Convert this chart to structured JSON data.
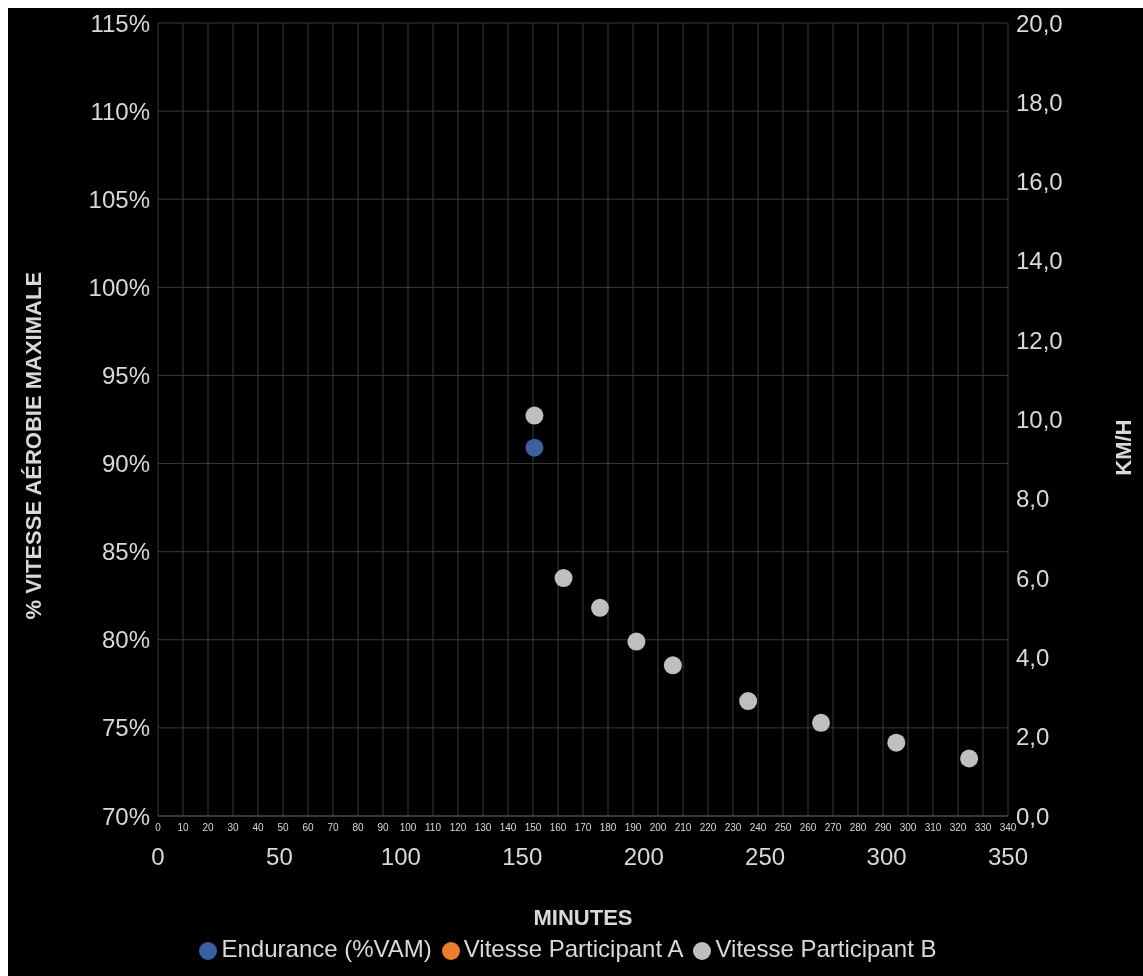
{
  "chart_data": {
    "type": "scatter",
    "xlabel": "MINUTES",
    "ylabel": "% VITESSE AÉROBIE MAXIMALE",
    "y2label": "KM/H",
    "xlim": [
      0,
      350
    ],
    "xticks": [
      0,
      50,
      100,
      150,
      200,
      250,
      300,
      350
    ],
    "x2lim": [
      0,
      340
    ],
    "x2ticks": [
      0,
      10,
      20,
      30,
      40,
      50,
      60,
      70,
      80,
      90,
      100,
      110,
      120,
      130,
      140,
      150,
      160,
      170,
      180,
      190,
      200,
      210,
      220,
      230,
      240,
      250,
      260,
      270,
      280,
      290,
      300,
      310,
      320,
      330,
      340
    ],
    "ylim": [
      70,
      115
    ],
    "yticks": [
      {
        "value": 70,
        "label": "70%"
      },
      {
        "value": 75,
        "label": "75%"
      },
      {
        "value": 80,
        "label": "80%"
      },
      {
        "value": 85,
        "label": "85%"
      },
      {
        "value": 90,
        "label": "90%"
      },
      {
        "value": 95,
        "label": "95%"
      },
      {
        "value": 100,
        "label": "100%"
      },
      {
        "value": 105,
        "label": "105%"
      },
      {
        "value": 110,
        "label": "110%"
      },
      {
        "value": 115,
        "label": "115%"
      }
    ],
    "y2lim": [
      0,
      20
    ],
    "y2ticks": [
      {
        "value": 0,
        "label": "0,0"
      },
      {
        "value": 2,
        "label": "2,0"
      },
      {
        "value": 4,
        "label": "4,0"
      },
      {
        "value": 6,
        "label": "6,0"
      },
      {
        "value": 8,
        "label": "8,0"
      },
      {
        "value": 10,
        "label": "10,0"
      },
      {
        "value": 12,
        "label": "12,0"
      },
      {
        "value": 14,
        "label": "14,0"
      },
      {
        "value": 16,
        "label": "16,0"
      },
      {
        "value": 18,
        "label": "18,0"
      },
      {
        "value": 20,
        "label": "20,0"
      }
    ],
    "grid": true,
    "legend": "bottom",
    "marker": "circle",
    "series": [
      {
        "name": "Endurance (%VAM)",
        "color": "#3c5f9e",
        "x": [
          155
        ],
        "values": [
          90.9
        ]
      },
      {
        "name": "Vitesse Participant A",
        "color": "#ed7d31"
      },
      {
        "name": "Vitesse Participant B",
        "color": "#bfbfbf",
        "axis": "y2",
        "x": [
          155,
          167,
          182,
          197,
          212,
          243,
          273,
          304,
          334
        ],
        "values": [
          10.1,
          6.0,
          5.25,
          4.4,
          3.8,
          2.9,
          2.35,
          1.85,
          1.45
        ]
      }
    ]
  }
}
